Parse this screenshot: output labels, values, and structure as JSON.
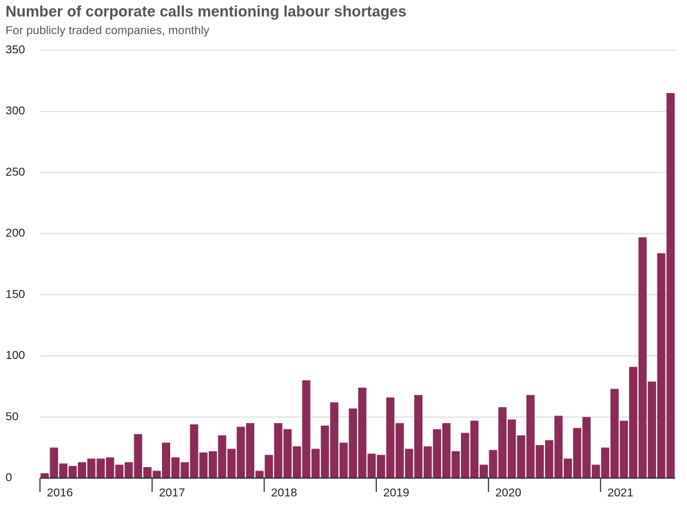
{
  "chart_data": {
    "type": "bar",
    "title": "Number of corporate calls mentioning labour shortages",
    "subtitle": "For publicly traded companies, monthly",
    "categories": [
      "2016",
      null,
      null,
      null,
      null,
      null,
      null,
      null,
      null,
      null,
      null,
      null,
      "2017",
      null,
      null,
      null,
      null,
      null,
      null,
      null,
      null,
      null,
      null,
      null,
      "2018",
      null,
      null,
      null,
      null,
      null,
      null,
      null,
      null,
      null,
      null,
      null,
      "2019",
      null,
      null,
      null,
      null,
      null,
      null,
      null,
      null,
      null,
      null,
      null,
      "2020",
      null,
      null,
      null,
      null,
      null,
      null,
      null,
      null,
      null,
      null,
      null,
      "2021",
      null,
      null,
      null,
      null,
      null,
      null,
      null
    ],
    "values": [
      4,
      25,
      12,
      10,
      13,
      16,
      16,
      17,
      11,
      13,
      36,
      9,
      6,
      29,
      17,
      13,
      44,
      21,
      22,
      35,
      24,
      42,
      45,
      6,
      19,
      45,
      40,
      26,
      80,
      24,
      43,
      62,
      29,
      57,
      74,
      20,
      19,
      66,
      45,
      24,
      68,
      26,
      40,
      45,
      22,
      37,
      47,
      11,
      23,
      58,
      48,
      35,
      68,
      27,
      31,
      51,
      16,
      41,
      50,
      11,
      25,
      73,
      47,
      91,
      197,
      79,
      184,
      315
    ],
    "color": "#8b2b58",
    "ylim": [
      0,
      350
    ],
    "yticks": [
      0,
      50,
      100,
      150,
      200,
      250,
      300,
      350
    ],
    "grid": true
  }
}
